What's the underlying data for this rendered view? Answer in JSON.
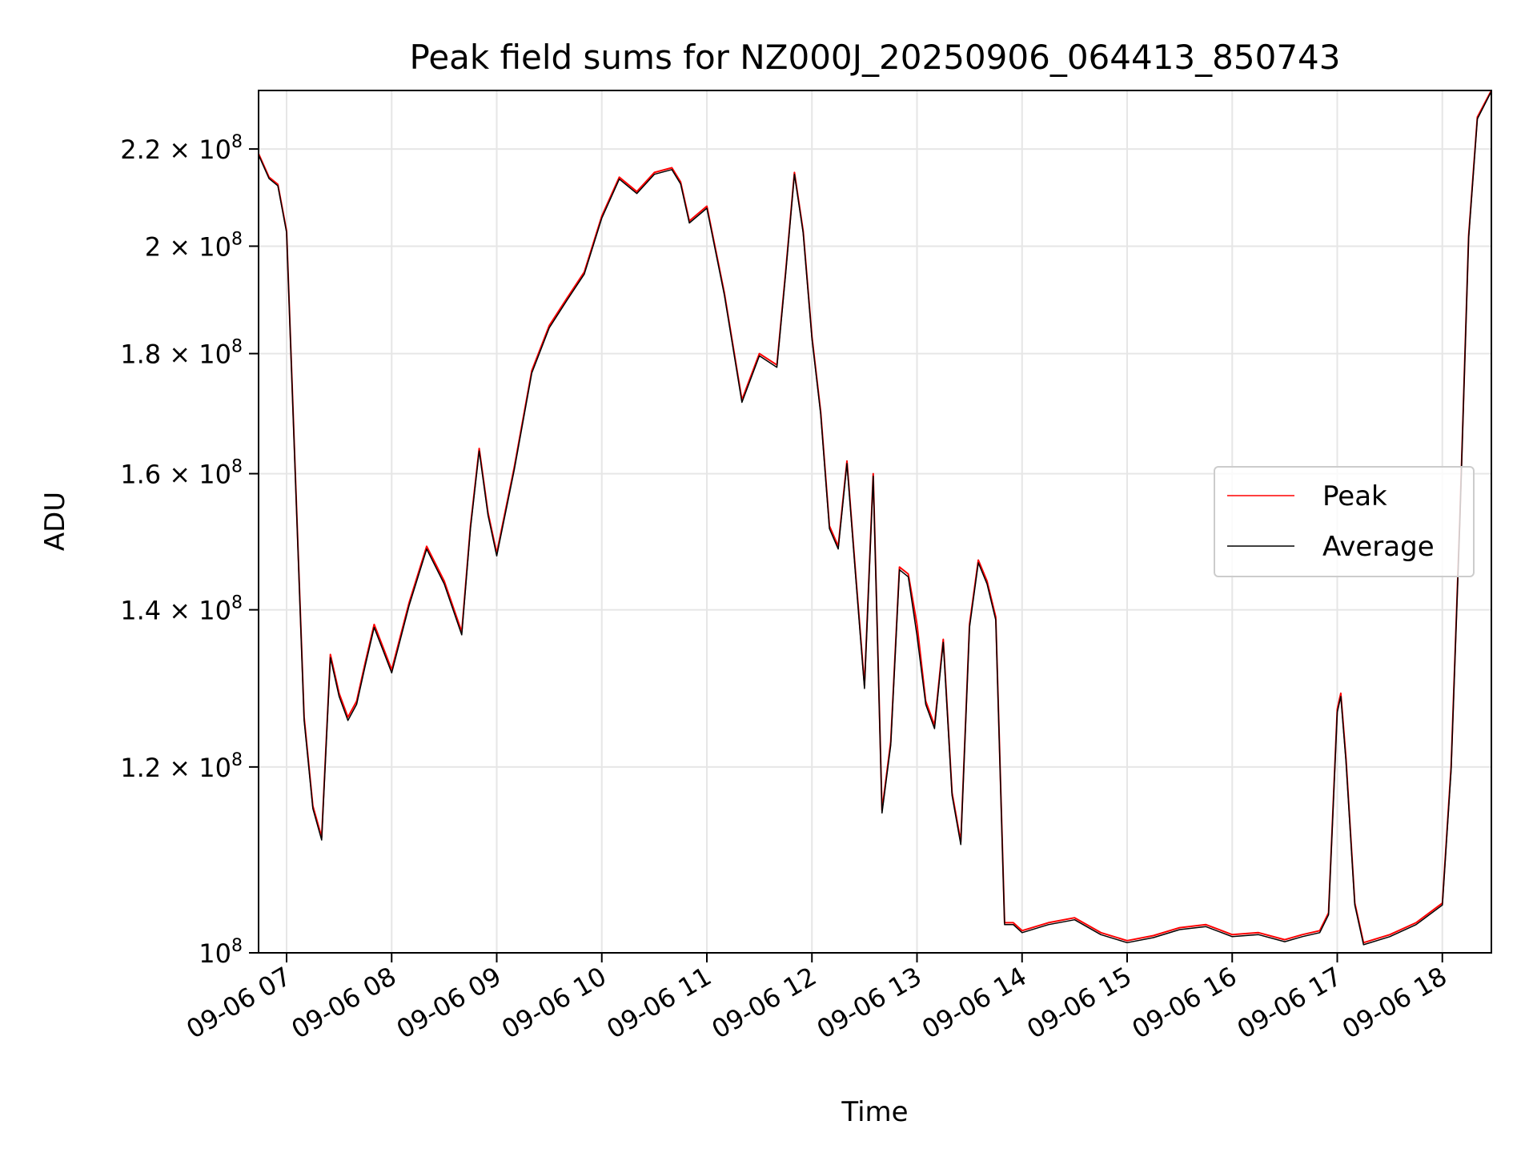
{
  "chart_data": {
    "type": "line",
    "title": "Peak field sums for NZ000J_20250906_064413_850743",
    "xlabel": "Time",
    "ylabel": "ADU",
    "y_scale": "log",
    "ylim": [
      100000000,
      233000000
    ],
    "xlim": [
      "2025-09-06 06:44",
      "2025-09-06 18:28"
    ],
    "grid": true,
    "legend_position": "center-right",
    "x_ticks": [
      {
        "time": "2025-09-06 07:00",
        "label": "09-06 07"
      },
      {
        "time": "2025-09-06 08:00",
        "label": "09-06 08"
      },
      {
        "time": "2025-09-06 09:00",
        "label": "09-06 09"
      },
      {
        "time": "2025-09-06 10:00",
        "label": "09-06 10"
      },
      {
        "time": "2025-09-06 11:00",
        "label": "09-06 11"
      },
      {
        "time": "2025-09-06 12:00",
        "label": "09-06 12"
      },
      {
        "time": "2025-09-06 13:00",
        "label": "09-06 13"
      },
      {
        "time": "2025-09-06 14:00",
        "label": "09-06 14"
      },
      {
        "time": "2025-09-06 15:00",
        "label": "09-06 15"
      },
      {
        "time": "2025-09-06 16:00",
        "label": "09-06 16"
      },
      {
        "time": "2025-09-06 17:00",
        "label": "09-06 17"
      },
      {
        "time": "2025-09-06 18:00",
        "label": "09-06 18"
      }
    ],
    "y_ticks": [
      {
        "value": 100000000,
        "base": "10",
        "exp": "8"
      },
      {
        "value": 120000000,
        "base": "1.2 × 10",
        "exp": "8"
      },
      {
        "value": 140000000,
        "base": "1.4 × 10",
        "exp": "8"
      },
      {
        "value": 160000000,
        "base": "1.6 × 10",
        "exp": "8"
      },
      {
        "value": 180000000,
        "base": "1.8 × 10",
        "exp": "8"
      },
      {
        "value": 200000000,
        "base": "2 × 10",
        "exp": "8"
      },
      {
        "value": 220000000,
        "base": "2.2 × 10",
        "exp": "8"
      }
    ],
    "x": [
      "06:44",
      "06:50",
      "06:55",
      "07:00",
      "07:05",
      "07:10",
      "07:15",
      "07:20",
      "07:25",
      "07:30",
      "07:35",
      "07:40",
      "07:45",
      "07:50",
      "07:55",
      "08:00",
      "08:10",
      "08:20",
      "08:30",
      "08:40",
      "08:45",
      "08:50",
      "08:55",
      "09:00",
      "09:10",
      "09:20",
      "09:30",
      "09:40",
      "09:50",
      "10:00",
      "10:10",
      "10:20",
      "10:30",
      "10:40",
      "10:45",
      "10:50",
      "11:00",
      "11:10",
      "11:20",
      "11:30",
      "11:40",
      "11:45",
      "11:50",
      "11:55",
      "12:00",
      "12:05",
      "12:10",
      "12:15",
      "12:20",
      "12:25",
      "12:30",
      "12:35",
      "12:40",
      "12:45",
      "12:50",
      "12:55",
      "13:00",
      "13:05",
      "13:10",
      "13:15",
      "13:20",
      "13:25",
      "13:30",
      "13:35",
      "13:40",
      "13:45",
      "13:50",
      "13:55",
      "14:00",
      "14:15",
      "14:30",
      "14:45",
      "15:00",
      "15:15",
      "15:30",
      "15:45",
      "16:00",
      "16:15",
      "16:30",
      "16:40",
      "16:50",
      "16:55",
      "17:00",
      "17:02",
      "17:05",
      "17:10",
      "17:15",
      "17:30",
      "17:45",
      "18:00",
      "18:05",
      "18:10",
      "18:15",
      "18:20",
      "18:28"
    ],
    "series": [
      {
        "name": "Peak",
        "color": "#ff0000",
        "values": [
          219000000,
          214000000,
          212500000,
          203000000,
          160000000,
          126000000,
          115500000,
          112000000,
          134000000,
          129000000,
          126000000,
          128000000,
          133000000,
          138000000,
          135000000,
          132000000,
          141000000,
          149000000,
          144000000,
          137000000,
          152000000,
          164000000,
          154000000,
          148000000,
          161000000,
          177000000,
          185000000,
          190000000,
          195000000,
          206000000,
          214000000,
          211000000,
          215000000,
          216000000,
          213000000,
          205000000,
          208000000,
          191000000,
          172000000,
          180000000,
          178000000,
          195000000,
          215000000,
          203000000,
          183000000,
          170000000,
          152000000,
          149000000,
          162000000,
          145000000,
          130000000,
          160000000,
          115000000,
          123000000,
          146000000,
          145000000,
          138000000,
          128000000,
          125000000,
          136000000,
          117000000,
          111500000,
          138000000,
          147000000,
          144000000,
          139000000,
          103000000,
          103000000,
          102200000,
          103000000,
          103500000,
          102000000,
          101200000,
          101700000,
          102500000,
          102800000,
          101800000,
          102000000,
          101300000,
          101800000,
          102200000,
          104000000,
          127000000,
          129000000,
          121000000,
          105000000,
          101000000,
          101800000,
          103000000,
          105000000,
          120000000,
          153000000,
          202000000,
          227000000,
          233000000
        ]
      },
      {
        "name": "Average",
        "color": "#000000",
        "values": [
          218700000,
          213700000,
          212200000,
          202700000,
          159600000,
          125600000,
          115200000,
          111700000,
          133600000,
          128600000,
          125600000,
          127600000,
          132600000,
          137600000,
          134600000,
          131600000,
          140600000,
          148600000,
          143600000,
          136600000,
          151600000,
          163600000,
          153600000,
          147600000,
          160600000,
          176600000,
          184600000,
          189600000,
          194600000,
          205600000,
          213600000,
          210600000,
          214600000,
          215600000,
          212600000,
          204600000,
          207600000,
          190600000,
          171600000,
          179600000,
          177600000,
          194600000,
          214600000,
          202600000,
          182600000,
          169600000,
          151600000,
          148600000,
          161600000,
          144600000,
          129600000,
          159600000,
          114700000,
          122600000,
          145600000,
          144600000,
          136500000,
          127600000,
          124600000,
          135600000,
          116700000,
          111200000,
          137600000,
          146600000,
          143600000,
          138600000,
          102800000,
          102800000,
          102000000,
          102800000,
          103300000,
          101800000,
          101000000,
          101500000,
          102300000,
          102600000,
          101600000,
          101800000,
          101100000,
          101600000,
          102000000,
          103800000,
          126600000,
          128600000,
          120600000,
          104800000,
          100800000,
          101600000,
          102800000,
          104800000,
          119600000,
          152600000,
          201600000,
          226600000,
          232800000
        ]
      }
    ]
  }
}
